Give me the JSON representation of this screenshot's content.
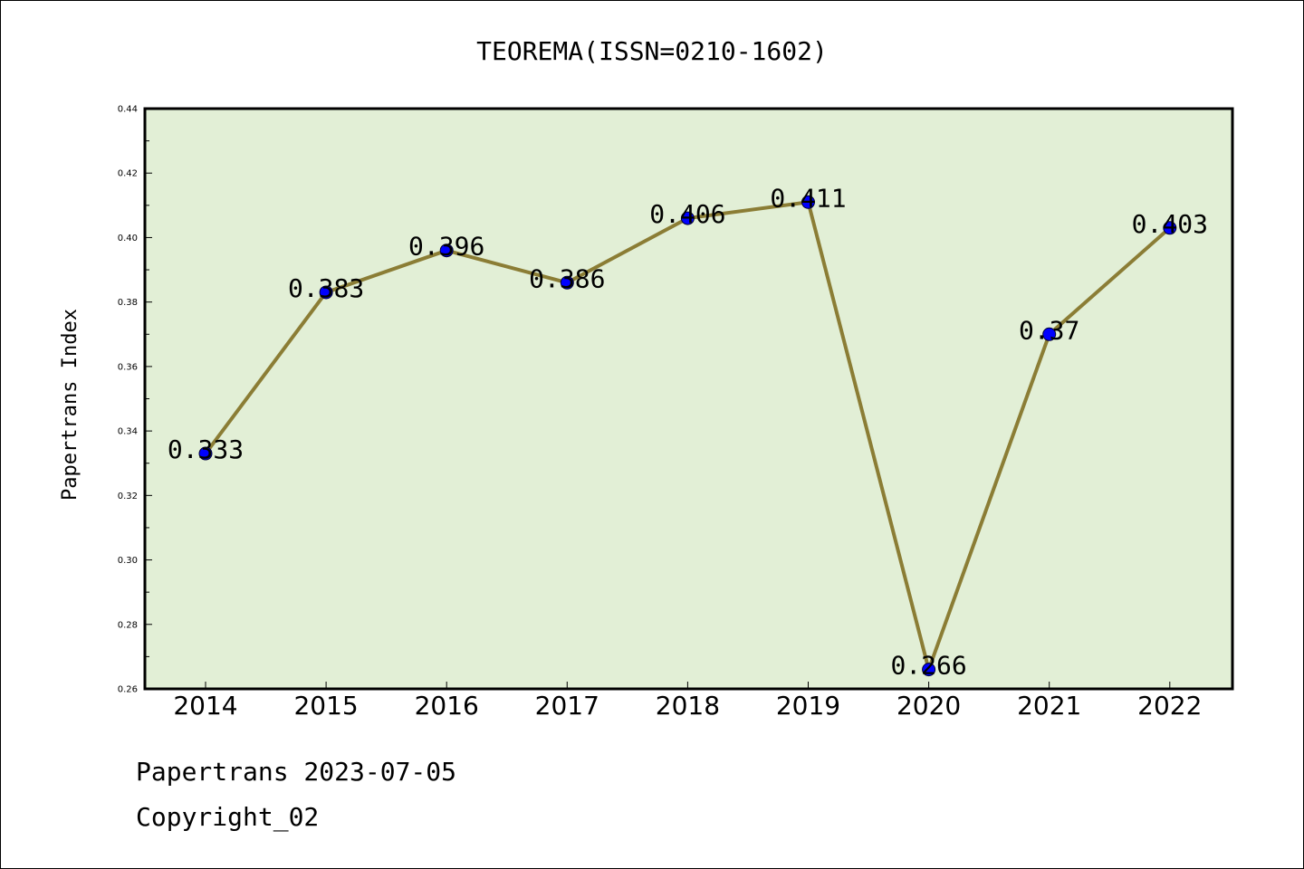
{
  "chart_data": {
    "type": "line",
    "title": "TEOREMA(ISSN=0210-1602)",
    "xlabel": "",
    "ylabel": "Papertrans Index",
    "categories": [
      "2014",
      "2015",
      "2016",
      "2017",
      "2018",
      "2019",
      "2020",
      "2021",
      "2022"
    ],
    "values": [
      0.333,
      0.383,
      0.396,
      0.386,
      0.406,
      0.411,
      0.266,
      0.37,
      0.403
    ],
    "data_labels": [
      "0.333",
      "0.383",
      "0.396",
      "0.386",
      "0.406",
      "0.411",
      "0.266",
      "0.37",
      "0.403"
    ],
    "ylim": [
      0.26,
      0.44
    ],
    "yticks": [
      "0.26",
      "0.28",
      "0.30",
      "0.32",
      "0.34",
      "0.36",
      "0.38",
      "0.40",
      "0.42",
      "0.44"
    ],
    "grid": false,
    "colors": {
      "plot_background": "#e2efd6",
      "line": "#8b7d35",
      "marker": "#0000ff"
    }
  },
  "footer": {
    "date_line": "Papertrans 2023-07-05",
    "copyright_line": "Copyright_02"
  }
}
